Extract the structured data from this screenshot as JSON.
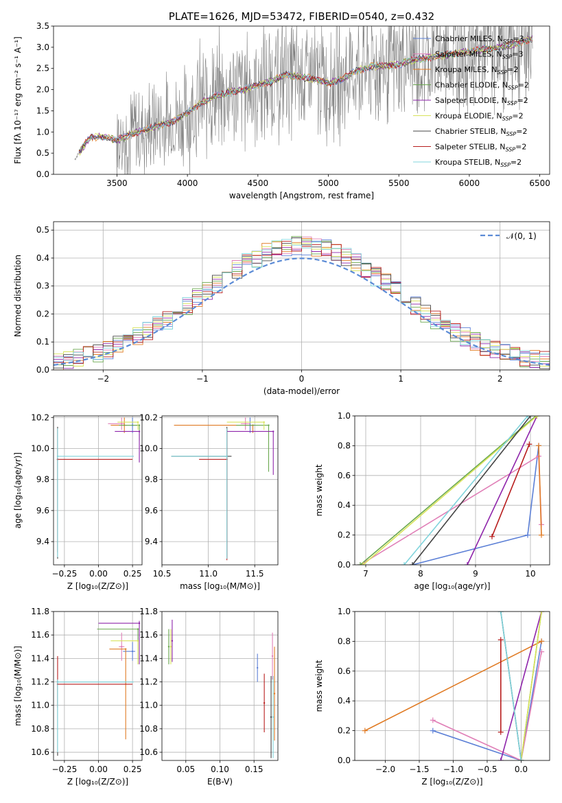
{
  "colors": {
    "chab_miles": "#5b7fd6",
    "salp_miles": "#e07fb7",
    "krou_miles": "#e07b24",
    "chab_elodie": "#6aa84f",
    "salp_elodie": "#8e24aa",
    "krou_elodie": "#d8e35a",
    "chab_stelib": "#444444",
    "salp_stelib": "#b71c1c",
    "krou_stelib": "#80d4dc",
    "data": "#808080",
    "normal": "#5b8bd6"
  },
  "chart_data": [
    {
      "id": "spectrum",
      "type": "line",
      "title": "PLATE=1626, MJD=53472, FIBERID=0540, z=0.432",
      "xlabel": "wavelength [Angstrom, rest frame]",
      "ylabel": "Flux [fλ 10⁻¹⁷ erg cm⁻² s⁻¹ A⁻¹]",
      "xlim": [
        3050,
        6570
      ],
      "ylim": [
        0,
        3.5
      ],
      "xticks": [
        3500,
        4000,
        4500,
        5000,
        5500,
        6000,
        6500
      ],
      "yticks": [
        0.0,
        0.5,
        1.0,
        1.5,
        2.0,
        2.5,
        3.0,
        3.5
      ],
      "legend_position": "top-right",
      "legend": [
        "Chabrier MILES, N_SSP=3",
        "Salpeter MILES, N_SSP=3",
        "Kroupa MILES, N_SSP=2",
        "Chabrier ELODIE, N_SSP=2",
        "Salpeter ELODIE, N_SSP=2",
        "Kroupa ELODIE, N_SSP=2",
        "Chabrier STELIB, N_SSP=2",
        "Salpeter STELIB, N_SSP=2",
        "Kroupa STELIB, N_SSP=2"
      ],
      "model_trend": {
        "x": [
          3200,
          3300,
          3400,
          3500,
          3600,
          3700,
          3800,
          3900,
          4000,
          4100,
          4200,
          4300,
          4400,
          4500,
          4600,
          4700,
          4800,
          4900,
          5000,
          5100,
          5200,
          5300,
          5400,
          5500,
          5600,
          5700,
          5800,
          5900,
          6000,
          6100,
          6200,
          6300,
          6400,
          6450
        ],
        "y": [
          0.35,
          0.85,
          0.9,
          0.8,
          0.95,
          1.05,
          1.15,
          1.25,
          1.45,
          1.7,
          1.85,
          1.95,
          2.0,
          2.1,
          2.2,
          2.35,
          2.3,
          2.25,
          2.15,
          2.25,
          2.45,
          2.55,
          2.55,
          2.6,
          2.7,
          2.75,
          2.8,
          2.85,
          2.9,
          2.95,
          3.0,
          3.05,
          3.15,
          3.2
        ]
      }
    },
    {
      "id": "residuals",
      "type": "line",
      "xlabel": "(data-model)/error",
      "ylabel": "Normed distribution",
      "xlim": [
        -2.5,
        2.5
      ],
      "ylim": [
        0,
        0.53
      ],
      "xticks": [
        -2,
        -1,
        0,
        1,
        2
      ],
      "yticks": [
        0.0,
        0.1,
        0.2,
        0.3,
        0.4,
        0.5
      ],
      "legend": [
        "𝒩(0, 1)"
      ],
      "legend_position": "top-right",
      "hist_bin_width": 0.1
    },
    {
      "id": "age_vs_Z",
      "type": "scatter",
      "xlabel": "Z [log₁₀(Z/Z⊙)]",
      "ylabel": "age  [log₁₀(age/yr)]",
      "xlim": [
        -0.33,
        0.32
      ],
      "ylim": [
        9.25,
        10.21
      ],
      "xticks": [
        -0.25,
        0.0,
        0.25
      ],
      "yticks": [
        9.4,
        9.6,
        9.8,
        10.0,
        10.2
      ],
      "points": [
        {
          "m": "chab_miles",
          "x": 0.25,
          "y": 10.15,
          "ex": [
            0.05,
            0.05
          ],
          "ey": [
            0.05,
            0.05
          ]
        },
        {
          "m": "salp_miles",
          "x": 0.17,
          "y": 10.16,
          "ex": [
            0.1,
            0.02
          ],
          "ey": [
            0.04,
            0.04
          ]
        },
        {
          "m": "krou_miles",
          "x": 0.19,
          "y": 10.15,
          "ex": [
            0.1,
            0.02
          ],
          "ey": [
            0.05,
            0.05
          ]
        },
        {
          "m": "chab_elodie",
          "x": 0.3,
          "y": 10.15,
          "ex": [
            0.15,
            0.0
          ],
          "ey": [
            0.1,
            0.0
          ]
        },
        {
          "m": "salp_elodie",
          "x": 0.3,
          "y": 10.11,
          "ex": [
            0.18,
            0.0
          ],
          "ey": [
            0.2,
            0.0
          ]
        },
        {
          "m": "krou_elodie",
          "x": 0.29,
          "y": 10.17,
          "ex": [
            0.15,
            0.0
          ],
          "ey": [
            0.05,
            0.0
          ]
        },
        {
          "m": "chab_stelib",
          "x": -0.3,
          "y": 9.93,
          "ex": [
            0.0,
            0.0
          ],
          "ey": [
            0.64,
            0.21
          ]
        },
        {
          "m": "salp_stelib",
          "x": -0.3,
          "y": 9.93,
          "ex": [
            0.0,
            0.55
          ],
          "ey": [
            0.6,
            0.2
          ]
        },
        {
          "m": "krou_stelib",
          "x": -0.3,
          "y": 9.95,
          "ex": [
            0.0,
            0.56
          ],
          "ey": [
            0.65,
            0.18
          ]
        }
      ]
    },
    {
      "id": "age_vs_mass",
      "type": "scatter",
      "xlabel": "mass [log₁₀(M/M⊙)]",
      "ylabel": "",
      "xlim": [
        10.5,
        11.75
      ],
      "ylim": [
        9.25,
        10.21
      ],
      "xticks": [
        10.5,
        11.0,
        11.5
      ],
      "yticks": [
        9.4,
        9.6,
        9.8,
        10.0,
        10.2
      ],
      "points": [
        {
          "m": "chab_miles",
          "x": 11.45,
          "y": 10.15,
          "ex": [
            0.05,
            0.05
          ],
          "ey": [
            0.05,
            0.05
          ]
        },
        {
          "m": "salp_miles",
          "x": 11.4,
          "y": 10.16,
          "ex": [
            0.05,
            0.05
          ],
          "ey": [
            0.04,
            0.04
          ]
        },
        {
          "m": "krou_miles",
          "x": 11.48,
          "y": 10.15,
          "ex": [
            0.85,
            0.0
          ],
          "ey": [
            0.05,
            0.0
          ]
        },
        {
          "m": "chab_elodie",
          "x": 11.65,
          "y": 10.15,
          "ex": [
            0.35,
            0.0
          ],
          "ey": [
            0.3,
            0.0
          ]
        },
        {
          "m": "salp_elodie",
          "x": 11.7,
          "y": 10.11,
          "ex": [
            0.5,
            0.0
          ],
          "ey": [
            0.28,
            0.0
          ]
        },
        {
          "m": "krou_elodie",
          "x": 11.6,
          "y": 10.17,
          "ex": [
            0.4,
            0.0
          ],
          "ey": [
            0.05,
            0.0
          ]
        },
        {
          "m": "chab_stelib",
          "x": 11.2,
          "y": 9.95,
          "ex": [
            0.6,
            0.05
          ],
          "ey": [
            0.66,
            0.19
          ]
        },
        {
          "m": "salp_stelib",
          "x": 11.2,
          "y": 9.93,
          "ex": [
            0.3,
            0.0
          ],
          "ey": [
            0.65,
            0.2
          ]
        },
        {
          "m": "krou_stelib",
          "x": 11.2,
          "y": 9.95,
          "ex": [
            0.6,
            0.0
          ],
          "ey": [
            0.66,
            0.18
          ]
        }
      ]
    },
    {
      "id": "weight_vs_age",
      "type": "line",
      "xlabel": "age  [log₁₀(age/yr)]",
      "ylabel": "mass weight",
      "xlim": [
        6.8,
        10.35
      ],
      "ylim": [
        0,
        1.0
      ],
      "xticks": [
        7,
        8,
        9,
        10
      ],
      "yticks": [
        0.0,
        0.2,
        0.4,
        0.6,
        0.8,
        1.0
      ],
      "series": [
        {
          "m": "chab_miles",
          "x": [
            7.85,
            9.95,
            10.15
          ],
          "y": [
            0.0,
            0.2,
            0.8
          ]
        },
        {
          "m": "salp_miles",
          "x": [
            6.9,
            10.15,
            10.2
          ],
          "y": [
            0.0,
            0.73,
            0.27
          ]
        },
        {
          "m": "krou_miles",
          "x": [
            10.15,
            10.2
          ],
          "y": [
            0.8,
            0.2
          ]
        },
        {
          "m": "chab_elodie",
          "x": [
            6.9,
            10.1
          ],
          "y": [
            0.0,
            1.0
          ]
        },
        {
          "m": "salp_elodie",
          "x": [
            8.85,
            10.12
          ],
          "y": [
            0.0,
            1.0
          ]
        },
        {
          "m": "krou_elodie",
          "x": [
            6.95,
            10.12
          ],
          "y": [
            0.0,
            1.0
          ]
        },
        {
          "m": "chab_stelib",
          "x": [
            7.85,
            10.0
          ],
          "y": [
            0.0,
            1.0
          ]
        },
        {
          "m": "salp_stelib",
          "x": [
            9.3,
            9.98
          ],
          "y": [
            0.19,
            0.81
          ]
        },
        {
          "m": "krou_stelib",
          "x": [
            7.7,
            9.95
          ],
          "y": [
            0.0,
            1.0
          ]
        }
      ]
    },
    {
      "id": "mass_vs_Z",
      "type": "scatter",
      "xlabel": "Z [log₁₀(Z/Z⊙)]",
      "ylabel": "mass [log₁₀(M/M⊙)]",
      "xlim": [
        -0.33,
        0.32
      ],
      "ylim": [
        10.53,
        11.8
      ],
      "xticks": [
        -0.25,
        0.0,
        0.25
      ],
      "yticks": [
        10.6,
        10.8,
        11.0,
        11.2,
        11.4,
        11.6,
        11.8
      ],
      "points": [
        {
          "m": "chab_miles",
          "x": 0.25,
          "y": 11.46,
          "ex": [
            0.07,
            0.02
          ],
          "ey": [
            0.08,
            0.08
          ]
        },
        {
          "m": "salp_miles",
          "x": 0.17,
          "y": 11.5,
          "ex": [
            0.02,
            0.02
          ],
          "ey": [
            0.12,
            0.12
          ]
        },
        {
          "m": "krou_miles",
          "x": 0.2,
          "y": 11.48,
          "ex": [
            0.12,
            0.0
          ],
          "ey": [
            0.77,
            0.0
          ]
        },
        {
          "m": "chab_elodie",
          "x": 0.29,
          "y": 11.65,
          "ex": [
            0.3,
            0.0
          ],
          "ey": [
            0.3,
            0.0
          ]
        },
        {
          "m": "salp_elodie",
          "x": 0.3,
          "y": 11.7,
          "ex": [
            0.3,
            0.0
          ],
          "ey": [
            0.35,
            0.02
          ]
        },
        {
          "m": "krou_elodie",
          "x": 0.29,
          "y": 11.55,
          "ex": [
            0.2,
            0.0
          ],
          "ey": [
            0.2,
            0.0
          ]
        },
        {
          "m": "chab_stelib",
          "x": -0.3,
          "y": 11.2,
          "ex": [
            0.0,
            0.55
          ],
          "ey": [
            0.63,
            0.02
          ]
        },
        {
          "m": "salp_stelib",
          "x": -0.3,
          "y": 11.18,
          "ex": [
            0.0,
            0.55
          ],
          "ey": [
            0.2,
            0.24
          ]
        },
        {
          "m": "krou_stelib",
          "x": -0.3,
          "y": 11.2,
          "ex": [
            0.0,
            0.56
          ],
          "ey": [
            0.6,
            0.02
          ]
        }
      ]
    },
    {
      "id": "mass_vs_EBV",
      "type": "scatter",
      "xlabel": "E(B-V)",
      "ylabel": "",
      "xlim": [
        0.015,
        0.185
      ],
      "ylim": [
        10.53,
        11.8
      ],
      "xticks": [
        0.05,
        0.1,
        0.15
      ],
      "yticks": [
        10.6,
        10.8,
        11.0,
        11.2,
        11.4,
        11.6,
        11.8
      ],
      "points": [
        {
          "m": "chab_miles",
          "x": 0.155,
          "y": 11.32,
          "ex": [
            0,
            0
          ],
          "ey": [
            0.12,
            0.12
          ]
        },
        {
          "m": "salp_miles",
          "x": 0.177,
          "y": 11.42,
          "ex": [
            0,
            0
          ],
          "ey": [
            0.2,
            0.2
          ]
        },
        {
          "m": "krou_miles",
          "x": 0.18,
          "y": 11.1,
          "ex": [
            0,
            0
          ],
          "ey": [
            0.4,
            0.4
          ]
        },
        {
          "m": "chab_elodie",
          "x": 0.025,
          "y": 11.5,
          "ex": [
            0,
            0
          ],
          "ey": [
            0.15,
            0.15
          ]
        },
        {
          "m": "salp_elodie",
          "x": 0.03,
          "y": 11.55,
          "ex": [
            0,
            0
          ],
          "ey": [
            0.18,
            0.18
          ]
        },
        {
          "m": "krou_elodie",
          "x": 0.028,
          "y": 11.5,
          "ex": [
            0,
            0
          ],
          "ey": [
            0.15,
            0.15
          ]
        },
        {
          "m": "chab_stelib",
          "x": 0.175,
          "y": 10.9,
          "ex": [
            0,
            0
          ],
          "ey": [
            0.35,
            0.35
          ]
        },
        {
          "m": "salp_stelib",
          "x": 0.165,
          "y": 11.02,
          "ex": [
            0,
            0
          ],
          "ey": [
            0.25,
            0.25
          ]
        },
        {
          "m": "krou_stelib",
          "x": 0.178,
          "y": 10.9,
          "ex": [
            0,
            0
          ],
          "ey": [
            0.35,
            0.35
          ]
        }
      ]
    },
    {
      "id": "weight_vs_Z",
      "type": "line",
      "xlabel": "Z [log₁₀(Z/Z⊙)]",
      "ylabel": "mass weight",
      "xlim": [
        -2.45,
        0.42
      ],
      "ylim": [
        0,
        1.0
      ],
      "xticks": [
        -2.0,
        -1.5,
        -1.0,
        -0.5,
        0.0
      ],
      "yticks": [
        0.0,
        0.2,
        0.4,
        0.6,
        0.8,
        1.0
      ],
      "series": [
        {
          "m": "chab_miles",
          "x": [
            -1.3,
            0.0,
            0.3
          ],
          "y": [
            0.2,
            0.0,
            0.8
          ]
        },
        {
          "m": "salp_miles",
          "x": [
            -1.3,
            0.0,
            0.3
          ],
          "y": [
            0.27,
            0.0,
            0.73
          ]
        },
        {
          "m": "krou_miles",
          "x": [
            -2.3,
            0.3
          ],
          "y": [
            0.2,
            0.8
          ]
        },
        {
          "m": "chab_elodie",
          "x": [
            0.0,
            0.3
          ],
          "y": [
            0.0,
            1.0
          ]
        },
        {
          "m": "salp_elodie",
          "x": [
            -0.3,
            0.3
          ],
          "y": [
            0.0,
            1.0
          ]
        },
        {
          "m": "krou_elodie",
          "x": [
            0.0,
            0.3
          ],
          "y": [
            0.0,
            1.0
          ]
        },
        {
          "m": "chab_stelib",
          "x": [
            -0.3,
            0.0
          ],
          "y": [
            1.0,
            0.0
          ]
        },
        {
          "m": "salp_stelib",
          "x": [
            -0.3,
            -0.3
          ],
          "y": [
            0.19,
            0.81
          ]
        },
        {
          "m": "krou_stelib",
          "x": [
            -0.3,
            0.0
          ],
          "y": [
            1.0,
            0.0
          ]
        }
      ]
    }
  ]
}
